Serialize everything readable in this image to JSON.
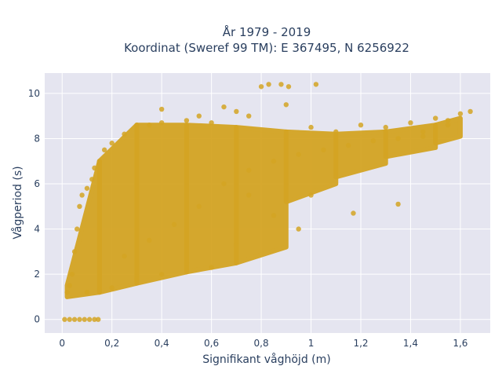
{
  "chart_data": {
    "type": "scatter",
    "title": "År 1979 - 2019",
    "subtitle": "Koordinat (Sweref 99 TM): E 367495, N 6256922",
    "xlabel": "Signifikant våghöjd (m)",
    "ylabel": "Vågperiod (s)",
    "xlim": [
      -0.07,
      1.72
    ],
    "ylim": [
      -0.6,
      10.9
    ],
    "x_ticks": [
      0,
      0.2,
      0.4,
      0.6,
      0.8,
      1.0,
      1.2,
      1.4,
      1.6
    ],
    "x_tick_labels": [
      "0",
      "0,2",
      "0,4",
      "0,6",
      "0,8",
      "1",
      "1,2",
      "1,4",
      "1,6"
    ],
    "y_ticks": [
      0,
      2,
      4,
      6,
      8,
      10
    ],
    "y_tick_labels": [
      "0",
      "2",
      "4",
      "6",
      "8",
      "10"
    ],
    "grid": true,
    "marker_color": "#d4a423",
    "background_color": "#e5e5f0",
    "points": [
      [
        0.01,
        0
      ],
      [
        0.03,
        0
      ],
      [
        0.05,
        0
      ],
      [
        0.07,
        0
      ],
      [
        0.09,
        0
      ],
      [
        0.11,
        0
      ],
      [
        0.13,
        0
      ],
      [
        0.145,
        0
      ],
      [
        0.02,
        1.2
      ],
      [
        0.03,
        1.5
      ],
      [
        0.04,
        2.0
      ],
      [
        0.05,
        3.0
      ],
      [
        0.06,
        4.0
      ],
      [
        0.07,
        5.0
      ],
      [
        0.08,
        5.5
      ],
      [
        0.1,
        5.8
      ],
      [
        0.12,
        6.2
      ],
      [
        0.13,
        6.7
      ],
      [
        0.15,
        7.0
      ],
      [
        0.17,
        7.5
      ],
      [
        0.2,
        7.8
      ],
      [
        0.25,
        8.2
      ],
      [
        0.3,
        8.6
      ],
      [
        0.35,
        8.6
      ],
      [
        0.4,
        8.7
      ],
      [
        0.4,
        9.3
      ],
      [
        0.5,
        8.8
      ],
      [
        0.55,
        9.0
      ],
      [
        0.6,
        8.7
      ],
      [
        0.65,
        9.4
      ],
      [
        0.7,
        9.2
      ],
      [
        0.75,
        9.0
      ],
      [
        0.8,
        10.3
      ],
      [
        0.83,
        10.4
      ],
      [
        0.88,
        10.4
      ],
      [
        0.91,
        10.3
      ],
      [
        1.02,
        10.4
      ],
      [
        0.9,
        9.5
      ],
      [
        1.0,
        8.5
      ],
      [
        1.1,
        8.3
      ],
      [
        1.2,
        8.6
      ],
      [
        1.3,
        8.5
      ],
      [
        1.4,
        8.7
      ],
      [
        1.5,
        8.9
      ],
      [
        1.6,
        9.1
      ],
      [
        1.64,
        9.2
      ],
      [
        1.55,
        8.8
      ],
      [
        1.45,
        8.3
      ],
      [
        1.35,
        5.1
      ],
      [
        1.17,
        4.7
      ],
      [
        1.0,
        5.5
      ],
      [
        0.95,
        4.0
      ],
      [
        0.85,
        4.6
      ],
      [
        0.75,
        5.5
      ],
      [
        0.7,
        3.3
      ],
      [
        0.6,
        2.3
      ],
      [
        0.5,
        2.5
      ],
      [
        0.4,
        2.0
      ],
      [
        0.3,
        1.8
      ],
      [
        0.2,
        1.4
      ],
      [
        0.1,
        1.2
      ],
      [
        0.15,
        1.3
      ],
      [
        0.25,
        2.8
      ],
      [
        0.35,
        3.5
      ],
      [
        0.45,
        4.2
      ],
      [
        0.55,
        5.0
      ],
      [
        0.65,
        6.0
      ],
      [
        0.75,
        6.6
      ],
      [
        0.85,
        7.0
      ],
      [
        0.95,
        7.3
      ],
      [
        1.05,
        7.5
      ],
      [
        1.15,
        7.7
      ],
      [
        1.25,
        7.9
      ],
      [
        1.35,
        8.0
      ],
      [
        1.45,
        8.1
      ],
      [
        1.55,
        8.6
      ]
    ],
    "density_bands": [
      {
        "x": [
          0.02,
          0.15
        ],
        "y_low": [
          1.0,
          1.2
        ],
        "y_high": [
          1.5,
          7.0
        ]
      },
      {
        "x": [
          0.15,
          0.3
        ],
        "y_low": [
          1.2,
          1.6
        ],
        "y_high": [
          7.0,
          8.6
        ]
      },
      {
        "x": [
          0.3,
          0.5
        ],
        "y_low": [
          1.6,
          2.1
        ],
        "y_high": [
          8.6,
          8.6
        ]
      },
      {
        "x": [
          0.5,
          0.7
        ],
        "y_low": [
          2.1,
          2.5
        ],
        "y_high": [
          8.6,
          8.5
        ]
      },
      {
        "x": [
          0.7,
          0.9
        ],
        "y_low": [
          2.5,
          3.2
        ],
        "y_high": [
          8.5,
          8.3
        ]
      },
      {
        "x": [
          0.9,
          1.1
        ],
        "y_low": [
          5.2,
          6.0
        ],
        "y_high": [
          8.3,
          8.2
        ]
      },
      {
        "x": [
          1.1,
          1.3
        ],
        "y_low": [
          6.3,
          6.9
        ],
        "y_high": [
          8.2,
          8.3
        ]
      },
      {
        "x": [
          1.3,
          1.5
        ],
        "y_low": [
          7.2,
          7.6
        ],
        "y_high": [
          8.3,
          8.6
        ]
      },
      {
        "x": [
          1.5,
          1.6
        ],
        "y_low": [
          7.8,
          8.1
        ],
        "y_high": [
          8.6,
          8.9
        ]
      }
    ]
  }
}
